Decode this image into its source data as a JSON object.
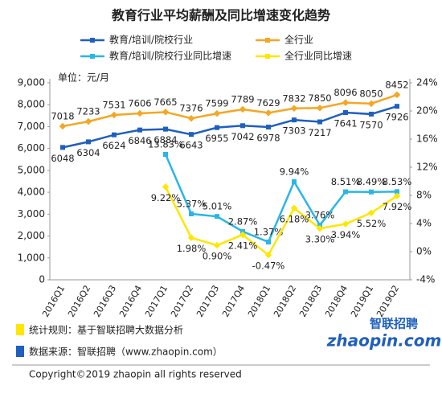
{
  "chart_data": {
    "type": "line",
    "title": "教育行业平均薪酬及同比增速变化趋势",
    "annotation": "单位：元/月",
    "categories": [
      "2016Q1",
      "2016Q2",
      "2016Q3",
      "2016Q4",
      "2017Q1",
      "2017Q2",
      "2017Q3",
      "2017Q4",
      "2018Q1",
      "2018Q2",
      "2018Q3",
      "2018Q4",
      "2019Q1",
      "2019Q2"
    ],
    "series": [
      {
        "name": "教育/培训/院校行业",
        "color": "#1f5fbf",
        "values": [
          6048,
          6304,
          6624,
          6846,
          6884,
          6643,
          6955,
          7042,
          6978,
          7303,
          7217,
          7641,
          7570,
          7926
        ]
      },
      {
        "name": "全行业",
        "color": "#f5a623",
        "values": [
          7018,
          7233,
          7531,
          7606,
          7665,
          7376,
          7599,
          7789,
          7629,
          7832,
          7850,
          8096,
          8050,
          8452
        ]
      },
      {
        "name": "教育/培训/院校行业同比增速",
        "color": "#29b6e8",
        "axis": "y2",
        "values": [
          null,
          null,
          null,
          null,
          13.83,
          5.37,
          5.01,
          2.87,
          1.37,
          9.94,
          3.76,
          8.51,
          8.49,
          8.53
        ],
        "value_labels": [
          null,
          null,
          null,
          null,
          "13.83%",
          "5.37%",
          "5.01%",
          "2.87%",
          "1.37%",
          "9.94%",
          "3.76%",
          "8.51%",
          "8.49%",
          "8.53%"
        ]
      },
      {
        "name": "全行业同比增速",
        "color": "#ffe600",
        "axis": "y2",
        "values": [
          null,
          null,
          null,
          null,
          9.22,
          1.98,
          0.9,
          2.41,
          -0.47,
          6.18,
          3.3,
          3.94,
          5.52,
          7.92
        ],
        "value_labels": [
          null,
          null,
          null,
          null,
          "9.22%",
          "1.98%",
          "0.90%",
          "2.41%",
          "-0.47%",
          "6.18%",
          "3.30%",
          "3.94%",
          "5.52%",
          "7.92%"
        ]
      }
    ],
    "ylim": [
      0,
      9000
    ],
    "yticks": [
      0,
      {
        "value": 1000,
        "label": "1,000"
      },
      {
        "value": 2000,
        "label": "2,000"
      },
      {
        "value": 3000,
        "label": "3,000"
      },
      {
        "value": 4000,
        "label": "4,000"
      },
      {
        "value": 5000,
        "label": "5,000"
      },
      {
        "value": 6000,
        "label": "6,000"
      },
      {
        "value": 7000,
        "label": "7,000"
      },
      {
        "value": 8000,
        "label": "8,000"
      },
      {
        "value": 9000,
        "label": "9,000"
      }
    ],
    "y2lim": [
      -4,
      24
    ],
    "y2ticks": [
      {
        "value": -4,
        "label": "-4%"
      },
      {
        "value": 0,
        "label": "0%"
      },
      {
        "value": 4,
        "label": "4%"
      },
      {
        "value": 8,
        "label": "8%"
      },
      {
        "value": 12,
        "label": "12%"
      },
      {
        "value": 16,
        "label": "16%"
      },
      {
        "value": 20,
        "label": "20%"
      },
      {
        "value": 24,
        "label": "24%"
      }
    ],
    "footer": {
      "rule": "统计规则：基于智联招聘大数据分析",
      "source": "数据来源：智联招聘（www.zhaopin.com）",
      "copyright": "Copyright©2019 zhaopin all rights reserved",
      "logo": "智联招聘",
      "logo_sub": "zhaopin.com"
    }
  }
}
